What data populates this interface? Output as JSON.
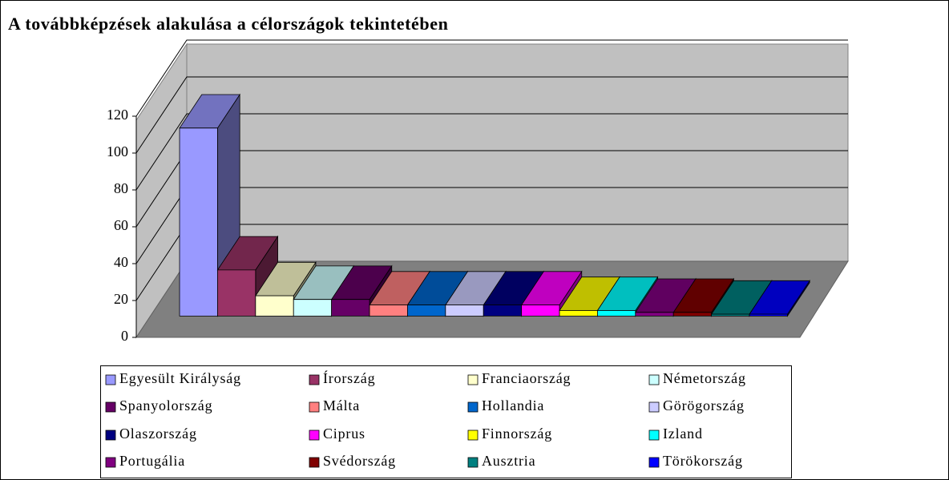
{
  "chart_data": {
    "type": "bar3d",
    "title": "A továbbképzések alakulása a célországok tekintetében",
    "categories": [
      "Egyesült Királyság",
      "Írország",
      "Franciaország",
      "Németország",
      "Spanyolország",
      "Málta",
      "Hollandia",
      "Görögország",
      "Olaszország",
      "Ciprus",
      "Finnország",
      "Izland",
      "Portugália",
      "Svédország",
      "Ausztria",
      "Törökország"
    ],
    "values": [
      102,
      25,
      11,
      9,
      9,
      6,
      6,
      6,
      6,
      6,
      3,
      3,
      2,
      2,
      1,
      1
    ],
    "colors": [
      "#9999ff",
      "#993366",
      "#ffffcc",
      "#ccffff",
      "#660066",
      "#ff8080",
      "#0066cc",
      "#ccccff",
      "#000080",
      "#ff00ff",
      "#ffff00",
      "#00ffff",
      "#800080",
      "#800000",
      "#008080",
      "#0000ff"
    ],
    "ylim": [
      0,
      120
    ],
    "yticks": [
      0,
      20,
      40,
      60,
      80,
      100,
      120
    ],
    "grid": true,
    "legend": "bottom"
  }
}
